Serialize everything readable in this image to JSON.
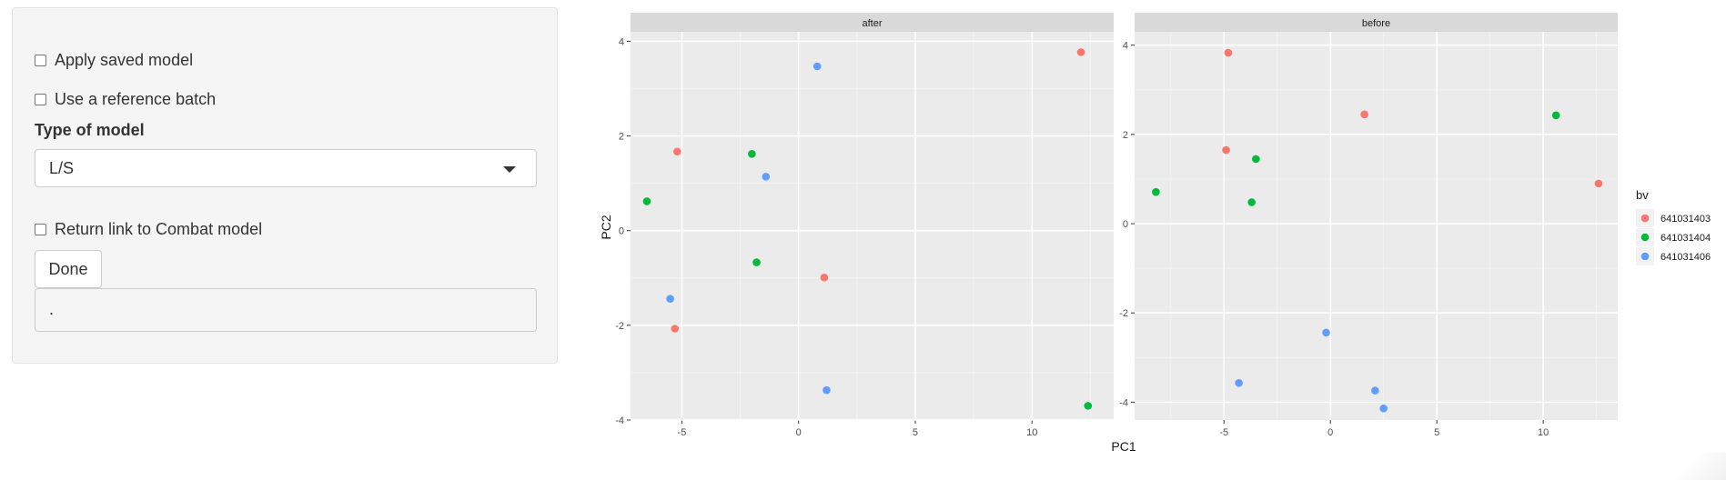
{
  "sidebar": {
    "apply_saved_model": {
      "label": "Apply saved model",
      "checked": false
    },
    "use_reference_batch": {
      "label": "Use a reference batch",
      "checked": false
    },
    "model_type": {
      "label": "Type of model",
      "selected": "L/S"
    },
    "return_link": {
      "label": "Return link to Combat model",
      "checked": false
    },
    "done_label": "Done",
    "output_text": "."
  },
  "colors": {
    "641031403": "#F8766D",
    "641031404": "#00BA38",
    "641031406": "#619CFF"
  },
  "chart_data": {
    "type": "scatter",
    "xlabel": "PC1",
    "ylabel": "PC2",
    "legend": {
      "title": "bv",
      "position": "right",
      "entries": [
        "641031403",
        "641031404",
        "641031406"
      ]
    },
    "facets": [
      {
        "title": "after",
        "xlim": [
          -7.2,
          13.5
        ],
        "ylim": [
          -4.0,
          4.2
        ],
        "xticks": [
          -5,
          0,
          5,
          10
        ],
        "yticks": [
          -4,
          -2,
          0,
          2,
          4
        ],
        "points": [
          {
            "x": 12.1,
            "y": 3.77,
            "group": "641031403"
          },
          {
            "x": -5.2,
            "y": 1.67,
            "group": "641031403"
          },
          {
            "x": 1.1,
            "y": -0.99,
            "group": "641031403"
          },
          {
            "x": -5.3,
            "y": -2.07,
            "group": "641031403"
          },
          {
            "x": -6.5,
            "y": 0.62,
            "group": "641031404"
          },
          {
            "x": -2.0,
            "y": 1.62,
            "group": "641031404"
          },
          {
            "x": -1.8,
            "y": -0.67,
            "group": "641031404"
          },
          {
            "x": 12.4,
            "y": -3.7,
            "group": "641031404"
          },
          {
            "x": 0.8,
            "y": 3.47,
            "group": "641031406"
          },
          {
            "x": -1.4,
            "y": 1.14,
            "group": "641031406"
          },
          {
            "x": -5.5,
            "y": -1.44,
            "group": "641031406"
          },
          {
            "x": 1.2,
            "y": -3.37,
            "group": "641031406"
          }
        ]
      },
      {
        "title": "before",
        "xlim": [
          -9.2,
          13.5
        ],
        "ylim": [
          -4.4,
          4.3
        ],
        "xticks": [
          -5,
          0,
          5,
          10
        ],
        "yticks": [
          -4,
          -2,
          0,
          2,
          4
        ],
        "points": [
          {
            "x": -4.8,
            "y": 3.83,
            "group": "641031403"
          },
          {
            "x": 1.6,
            "y": 2.45,
            "group": "641031403"
          },
          {
            "x": -4.9,
            "y": 1.65,
            "group": "641031403"
          },
          {
            "x": 12.6,
            "y": 0.9,
            "group": "641031403"
          },
          {
            "x": -8.2,
            "y": 0.71,
            "group": "641031404"
          },
          {
            "x": -3.5,
            "y": 1.45,
            "group": "641031404"
          },
          {
            "x": -3.7,
            "y": 0.48,
            "group": "641031404"
          },
          {
            "x": 10.6,
            "y": 2.43,
            "group": "641031404"
          },
          {
            "x": -0.2,
            "y": -2.44,
            "group": "641031406"
          },
          {
            "x": -4.3,
            "y": -3.57,
            "group": "641031406"
          },
          {
            "x": 2.1,
            "y": -3.74,
            "group": "641031406"
          },
          {
            "x": 2.5,
            "y": -4.14,
            "group": "641031406"
          }
        ]
      }
    ]
  }
}
